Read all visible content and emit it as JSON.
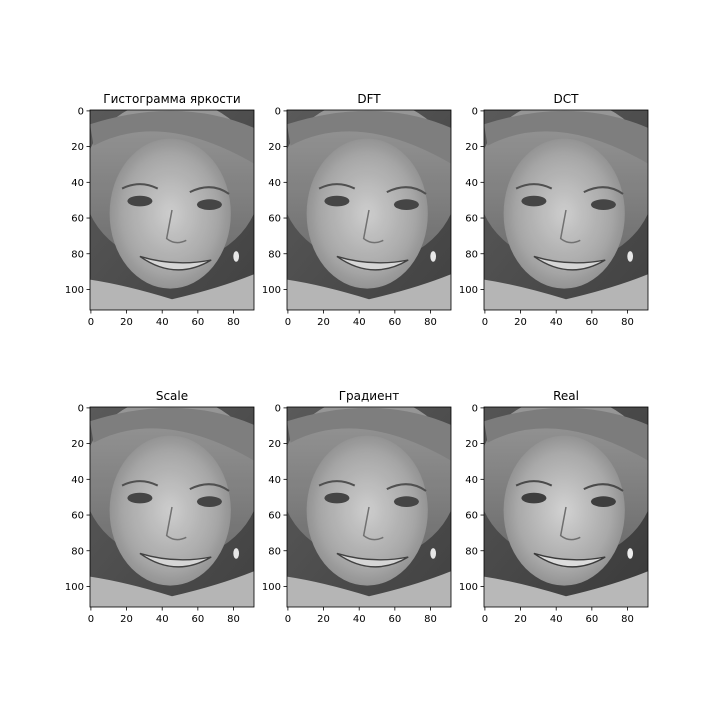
{
  "figure": {
    "background": "#ffffff"
  },
  "chart_data": [
    {
      "type": "image",
      "title": "Гистограмма яркости",
      "image_shape": [
        112,
        92
      ],
      "colormap": "gray",
      "xlim": [
        -0.5,
        91.5
      ],
      "ylim": [
        111.5,
        -0.5
      ],
      "xticks": [
        0,
        20,
        40,
        60,
        80
      ],
      "yticks": [
        0,
        20,
        40,
        60,
        80,
        100
      ],
      "content": "grayscale face photograph"
    },
    {
      "type": "image",
      "title": "DFT",
      "image_shape": [
        112,
        92
      ],
      "colormap": "gray",
      "xlim": [
        -0.5,
        91.5
      ],
      "ylim": [
        111.5,
        -0.5
      ],
      "xticks": [
        0,
        20,
        40,
        60,
        80
      ],
      "yticks": [
        0,
        20,
        40,
        60,
        80,
        100
      ],
      "content": "grayscale face photograph"
    },
    {
      "type": "image",
      "title": "DCT",
      "image_shape": [
        112,
        92
      ],
      "colormap": "gray",
      "xlim": [
        -0.5,
        91.5
      ],
      "ylim": [
        111.5,
        -0.5
      ],
      "xticks": [
        0,
        20,
        40,
        60,
        80
      ],
      "yticks": [
        0,
        20,
        40,
        60,
        80,
        100
      ],
      "content": "grayscale face photograph"
    },
    {
      "type": "image",
      "title": "Scale",
      "image_shape": [
        112,
        92
      ],
      "colormap": "gray",
      "xlim": [
        -0.5,
        91.5
      ],
      "ylim": [
        111.5,
        -0.5
      ],
      "xticks": [
        0,
        20,
        40,
        60,
        80
      ],
      "yticks": [
        0,
        20,
        40,
        60,
        80,
        100
      ],
      "content": "grayscale face photograph"
    },
    {
      "type": "image",
      "title": "Градиент",
      "image_shape": [
        112,
        92
      ],
      "colormap": "gray",
      "xlim": [
        -0.5,
        91.5
      ],
      "ylim": [
        111.5,
        -0.5
      ],
      "xticks": [
        0,
        20,
        40,
        60,
        80
      ],
      "yticks": [
        0,
        20,
        40,
        60,
        80,
        100
      ],
      "content": "grayscale face photograph"
    },
    {
      "type": "image",
      "title": "Real",
      "image_shape": [
        112,
        92
      ],
      "colormap": "gray",
      "xlim": [
        -0.5,
        91.5
      ],
      "ylim": [
        111.5,
        -0.5
      ],
      "xticks": [
        0,
        20,
        40,
        60,
        80
      ],
      "yticks": [
        0,
        20,
        40,
        60,
        80,
        100
      ],
      "content": "grayscale face photograph"
    }
  ]
}
